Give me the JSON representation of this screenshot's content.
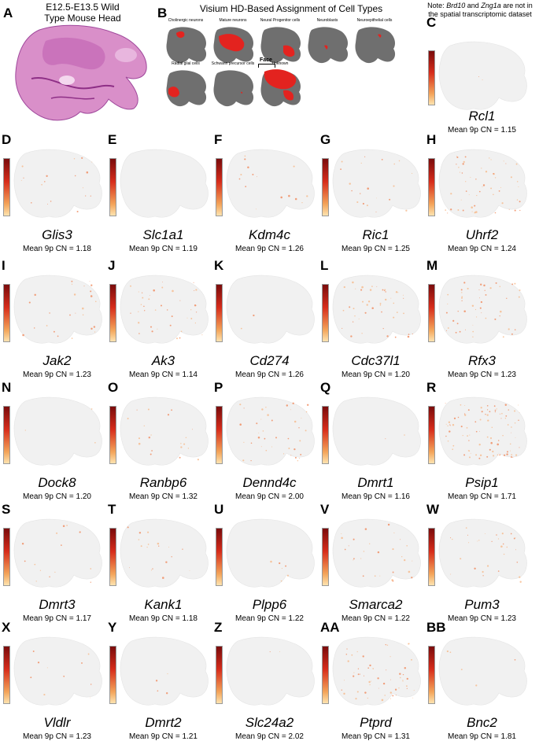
{
  "panelA": {
    "letter": "A",
    "title_line1": "E12.5-E13.5 Wild",
    "title_line2": "Type Mouse Head"
  },
  "panelB": {
    "letter": "B",
    "title": "Visium HD-Based Assignment of Cell Types",
    "cell_types": [
      "Cholinergic neurons",
      "Mature neurons",
      "Neural Progenitor cells",
      "Neuroblasts",
      "Neuroepithelial cells",
      "Radial glial cells",
      "Schwann precursor cells",
      "Unknown"
    ],
    "face_label": "Face"
  },
  "note": {
    "prefix": "Note: ",
    "gene1": "Brd10",
    "mid": " and ",
    "gene2": "Zng1a",
    "suffix": " are not in",
    "line2": "the spatial transcriptomic dataset"
  },
  "colors": {
    "tissue_gray": "#6f6f6f",
    "highlight_red": "#e3231f",
    "expression_low": "#fde3b0",
    "expression_high": "#7a0c0c"
  },
  "genes": [
    {
      "letter": "C",
      "gene": "Rcl1",
      "cn": "Mean 9p CN = 1.15"
    },
    {
      "letter": "D",
      "gene": "Glis3",
      "cn": "Mean 9p CN = 1.18"
    },
    {
      "letter": "E",
      "gene": "Slc1a1",
      "cn": "Mean 9p CN = 1.19"
    },
    {
      "letter": "F",
      "gene": "Kdm4c",
      "cn": "Mean 9p CN = 1.26"
    },
    {
      "letter": "G",
      "gene": "Ric1",
      "cn": "Mean 9p CN = 1.25"
    },
    {
      "letter": "H",
      "gene": "Uhrf2",
      "cn": "Mean 9p CN = 1.24"
    },
    {
      "letter": "I",
      "gene": "Jak2",
      "cn": "Mean 9p CN = 1.23"
    },
    {
      "letter": "J",
      "gene": "Ak3",
      "cn": "Mean 9p CN = 1.14"
    },
    {
      "letter": "K",
      "gene": "Cd274",
      "cn": "Mean 9p CN = 1.26"
    },
    {
      "letter": "L",
      "gene": "Cdc37l1",
      "cn": "Mean 9p CN = 1.20"
    },
    {
      "letter": "M",
      "gene": "Rfx3",
      "cn": "Mean 9p CN = 1.23"
    },
    {
      "letter": "N",
      "gene": "Dock8",
      "cn": "Mean 9p CN = 1.20"
    },
    {
      "letter": "O",
      "gene": "Ranbp6",
      "cn": "Mean 9p CN = 1.32"
    },
    {
      "letter": "P",
      "gene": "Dennd4c",
      "cn": "Mean 9p CN = 2.00"
    },
    {
      "letter": "Q",
      "gene": "Dmrt1",
      "cn": "Mean 9p CN = 1.16"
    },
    {
      "letter": "R",
      "gene": "Psip1",
      "cn": "Mean 9p CN = 1.71"
    },
    {
      "letter": "S",
      "gene": "Dmrt3",
      "cn": "Mean 9p CN = 1.17"
    },
    {
      "letter": "T",
      "gene": "Kank1",
      "cn": "Mean 9p CN = 1.18"
    },
    {
      "letter": "U",
      "gene": "Plpp6",
      "cn": "Mean 9p CN = 1.22"
    },
    {
      "letter": "V",
      "gene": "Smarca2",
      "cn": "Mean 9p CN = 1.22"
    },
    {
      "letter": "W",
      "gene": "Pum3",
      "cn": "Mean 9p CN = 1.23"
    },
    {
      "letter": "X",
      "gene": "Vldlr",
      "cn": "Mean 9p CN = 1.23"
    },
    {
      "letter": "Y",
      "gene": "Dmrt2",
      "cn": "Mean 9p CN = 1.21"
    },
    {
      "letter": "Z",
      "gene": "Slc24a2",
      "cn": "Mean 9p CN = 2.02"
    },
    {
      "letter": "AA",
      "gene": "Ptprd",
      "cn": "Mean 9p CN = 1.31"
    },
    {
      "letter": "BB",
      "gene": "Bnc2",
      "cn": "Mean 9p CN = 1.81"
    }
  ]
}
